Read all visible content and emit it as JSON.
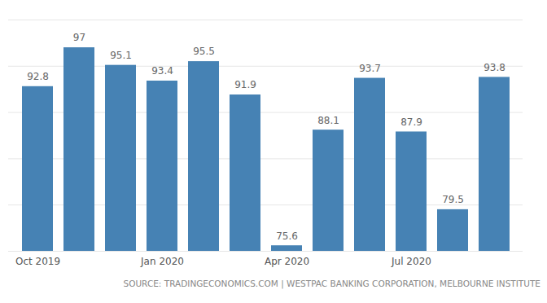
{
  "chart_data": {
    "type": "bar",
    "caption": "SOURCE: TRADINGECONOMICS.COM | WESTPAC BANKING CORPORATION, MELBOURNE INSTITUTE",
    "categories": [
      "Oct 2019",
      null,
      null,
      "Jan 2020",
      null,
      null,
      "Apr 2020",
      null,
      null,
      "Jul 2020",
      null,
      null
    ],
    "values": [
      92.8,
      97,
      95.1,
      93.4,
      95.5,
      91.9,
      75.6,
      88.1,
      93.7,
      87.9,
      79.5,
      93.8
    ],
    "color": "#4682b4",
    "ylim": [
      75,
      100
    ],
    "yticks": [
      75,
      80,
      85,
      90,
      95,
      100
    ],
    "grid": true,
    "data_labels": true,
    "tick_labels": "x"
  }
}
